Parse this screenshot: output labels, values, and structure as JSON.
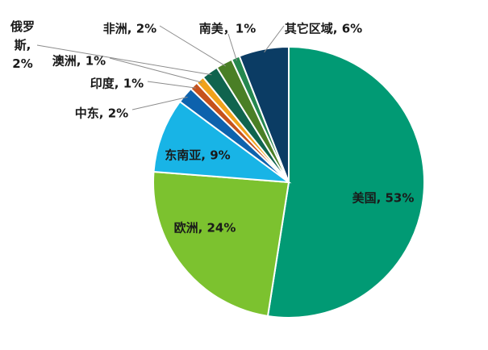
{
  "chart_data": {
    "type": "pie",
    "slices": [
      {
        "name": "美国",
        "value": 53,
        "label": "美国, 53%",
        "color": "#019a74"
      },
      {
        "name": "欧洲",
        "value": 24,
        "label": "欧洲, 24%",
        "color": "#7cc22f"
      },
      {
        "name": "东南亚",
        "value": 9,
        "label": "东南亚, 9%",
        "color": "#18b4e6"
      },
      {
        "name": "中东",
        "value": 2,
        "label": "中东, 2%",
        "color": "#0d62ad"
      },
      {
        "name": "印度",
        "value": 1,
        "label": "印度, 1%",
        "color": "#c6521c"
      },
      {
        "name": "澳洲",
        "value": 1,
        "label": "澳洲, 1%",
        "color": "#f0a21c"
      },
      {
        "name": "俄罗斯",
        "value": 2,
        "label": "俄罗斯, 2%",
        "label_lines": [
          "俄罗",
          "斯,",
          "2%"
        ],
        "color": "#10644e"
      },
      {
        "name": "非洲",
        "value": 2,
        "label": "非洲, 2%",
        "color": "#4a7f26"
      },
      {
        "name": "南美",
        "value": 1,
        "label": "南美，1%",
        "color": "#25874f"
      },
      {
        "name": "其它区域",
        "value": 6,
        "label": "其它区域, 6%",
        "color": "#0b3c64"
      }
    ]
  }
}
